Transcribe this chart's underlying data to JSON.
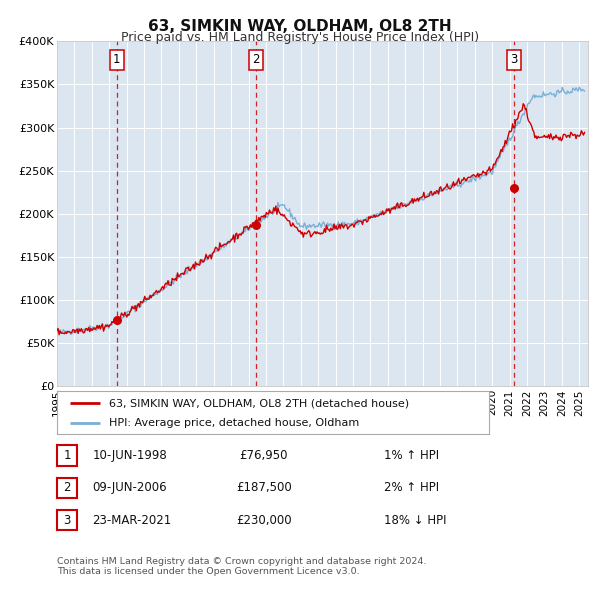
{
  "title": "63, SIMKIN WAY, OLDHAM, OL8 2TH",
  "subtitle": "Price paid vs. HM Land Registry's House Price Index (HPI)",
  "background_color": "#ffffff",
  "plot_bg_color": "#dce6f1",
  "grid_color": "#ffffff",
  "ylim": [
    0,
    400000
  ],
  "yticks": [
    0,
    50000,
    100000,
    150000,
    200000,
    250000,
    300000,
    350000,
    400000
  ],
  "ytick_labels": [
    "£0",
    "£50K",
    "£100K",
    "£150K",
    "£200K",
    "£250K",
    "£300K",
    "£350K",
    "£400K"
  ],
  "xlim_start": 1995.0,
  "xlim_end": 2025.5,
  "sale_color": "#cc0000",
  "hpi_color": "#7bafd4",
  "vline_color": "#cc0000",
  "transactions": [
    {
      "num": "1",
      "date_dec": 1998.44,
      "price": 76950,
      "vline_x": 1998.44
    },
    {
      "num": "2",
      "date_dec": 2006.44,
      "price": 187500,
      "vline_x": 2006.44
    },
    {
      "num": "3",
      "date_dec": 2021.23,
      "price": 230000,
      "vline_x": 2021.23
    }
  ],
  "legend_sale_label": "63, SIMKIN WAY, OLDHAM, OL8 2TH (detached house)",
  "legend_hpi_label": "HPI: Average price, detached house, Oldham",
  "table_rows": [
    {
      "num": "1",
      "date": "10-JUN-1998",
      "price": "£76,950",
      "change": "1% ↑ HPI"
    },
    {
      "num": "2",
      "date": "09-JUN-2006",
      "price": "£187,500",
      "change": "2% ↑ HPI"
    },
    {
      "num": "3",
      "date": "23-MAR-2021",
      "price": "£230,000",
      "change": "18% ↓ HPI"
    }
  ],
  "footnote1": "Contains HM Land Registry data © Crown copyright and database right 2024.",
  "footnote2": "This data is licensed under the Open Government Licence v3.0."
}
